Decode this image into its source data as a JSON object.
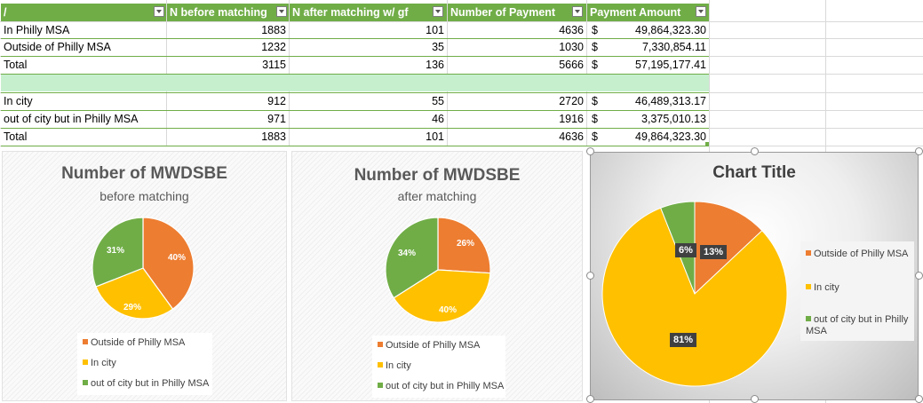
{
  "table": {
    "headers": [
      "/",
      "N before matching",
      "N after matching w/ gf",
      "Number of Payment",
      "Payment Amount"
    ],
    "rows": [
      {
        "label": "In Philly MSA",
        "n_before": "1883",
        "n_after": "101",
        "payments": "4636",
        "currency": "$",
        "amount": "49,864,323.30"
      },
      {
        "label": "Outside of Philly MSA",
        "n_before": "1232",
        "n_after": "35",
        "payments": "1030",
        "currency": "$",
        "amount": "7,330,854.11"
      },
      {
        "label": "Total",
        "n_before": "3115",
        "n_after": "136",
        "payments": "5666",
        "currency": "$",
        "amount": "57,195,177.41"
      },
      {
        "label": "",
        "n_before": "",
        "n_after": "",
        "payments": "",
        "currency": "",
        "amount": ""
      },
      {
        "label": "In city",
        "n_before": "912",
        "n_after": "55",
        "payments": "2720",
        "currency": "$",
        "amount": "46,489,313.17"
      },
      {
        "label": "out of city but in Philly MSA",
        "n_before": "971",
        "n_after": "46",
        "payments": "1916",
        "currency": "$",
        "amount": "3,375,010.13"
      },
      {
        "label": "Total",
        "n_before": "1883",
        "n_after": "101",
        "payments": "4636",
        "currency": "$",
        "amount": "49,864,323.30"
      }
    ]
  },
  "colors": {
    "orange": "#ed7d31",
    "yellow": "#ffc000",
    "green": "#70ad47",
    "header_bg": "#70ad47",
    "band": "#c6efce"
  },
  "chart_data": [
    {
      "type": "pie",
      "title": "Number of MWDSBE",
      "subtitle": "before matching",
      "categories": [
        "Outside of Philly MSA",
        "In city",
        "out of city but in Philly MSA"
      ],
      "values": [
        40,
        29,
        31
      ],
      "labels": [
        "40%",
        "29%",
        "31%"
      ],
      "legend": "bottom"
    },
    {
      "type": "pie",
      "title": "Number of MWDSBE",
      "subtitle": "after matching",
      "categories": [
        "Outside of Philly MSA",
        "In city",
        "out of city but in Philly MSA"
      ],
      "values": [
        26,
        40,
        34
      ],
      "labels": [
        "26%",
        "40%",
        "34%"
      ],
      "legend": "bottom"
    },
    {
      "type": "pie",
      "title": "Chart Title",
      "subtitle": "",
      "categories": [
        "Outside of Philly MSA",
        "In city",
        "out of city but in Philly MSA"
      ],
      "values": [
        13,
        81,
        6
      ],
      "labels": [
        "13%",
        "81%",
        "6%"
      ],
      "legend": "right"
    }
  ]
}
